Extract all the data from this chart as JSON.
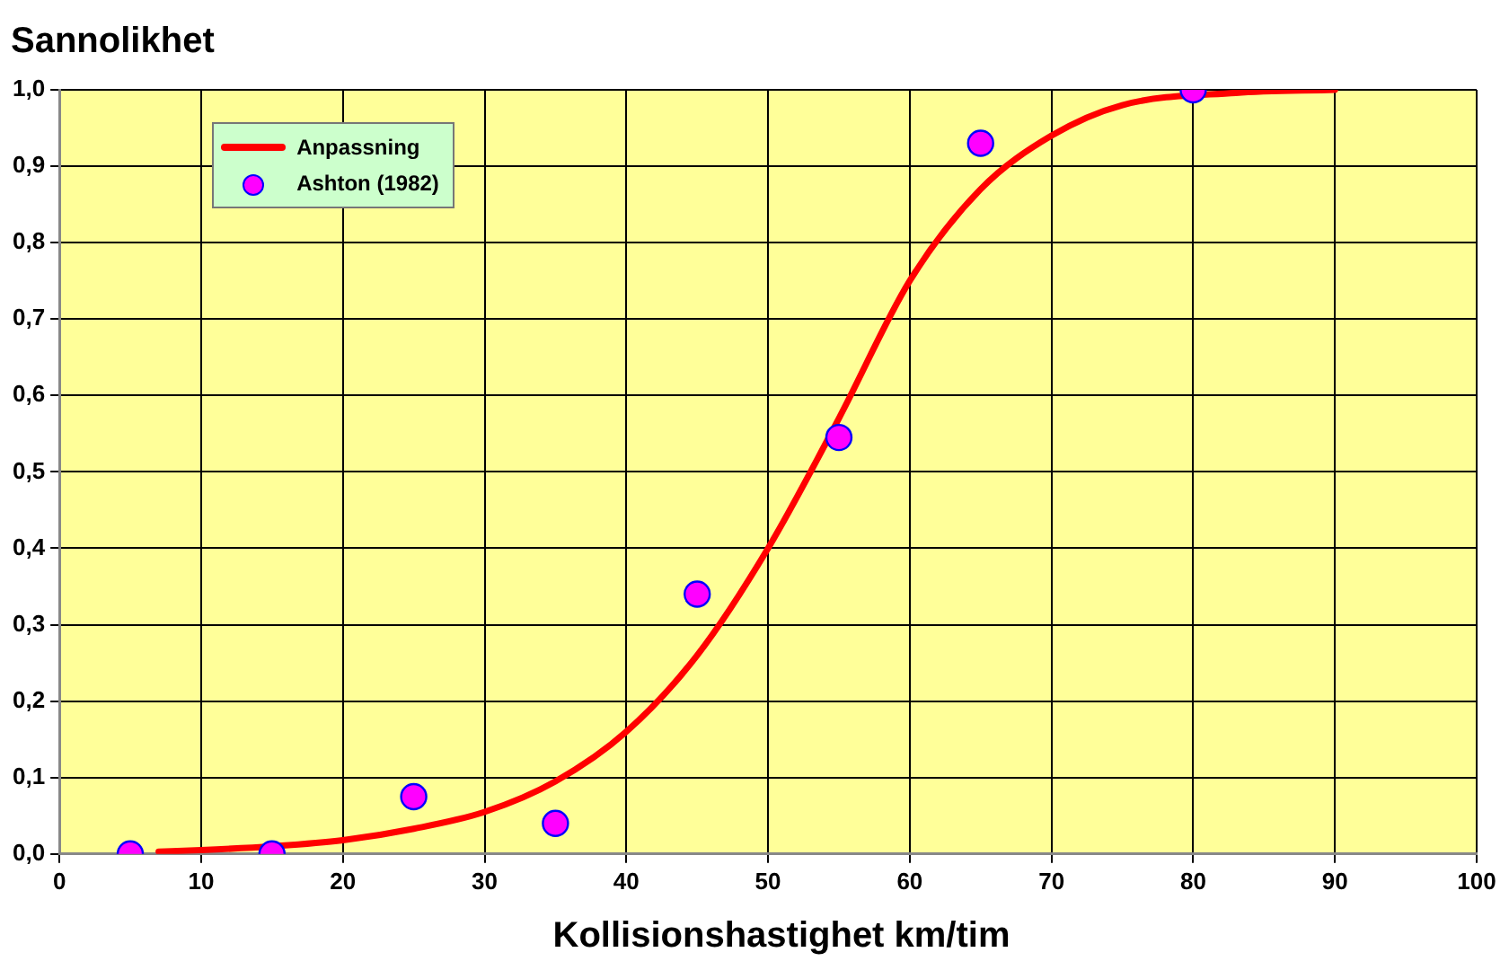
{
  "chart_data": {
    "type": "scatter",
    "xlabel": "Kollisionshastighet km/tim",
    "ylabel": "Sannolikhet",
    "xlim": [
      0,
      100
    ],
    "xticks": [
      0,
      10,
      20,
      30,
      40,
      50,
      60,
      70,
      80,
      90,
      100
    ],
    "ylim": [
      0,
      1
    ],
    "yticks": [
      {
        "value": 0,
        "label": "0,0"
      },
      {
        "value": 0.1,
        "label": "0,1"
      },
      {
        "value": 0.2,
        "label": "0,2"
      },
      {
        "value": 0.3,
        "label": "0,3"
      },
      {
        "value": 0.4,
        "label": "0,4"
      },
      {
        "value": 0.5,
        "label": "0,5"
      },
      {
        "value": 0.6,
        "label": "0,6"
      },
      {
        "value": 0.7,
        "label": "0,7"
      },
      {
        "value": 0.8,
        "label": "0,8"
      },
      {
        "value": 0.9,
        "label": "0,9"
      },
      {
        "value": 1,
        "label": "1,0"
      }
    ],
    "grid": true,
    "legend": "top left",
    "series": [
      {
        "name": "Anpassning",
        "type": "line",
        "color": "#ff0000",
        "marker": "none",
        "line_style": "solid",
        "x": [
          7,
          10,
          15,
          20,
          25,
          30,
          35,
          40,
          45,
          50,
          55,
          60,
          65,
          70,
          75,
          83,
          90
        ],
        "values": [
          0.003,
          0.005,
          0.01,
          0.018,
          0.033,
          0.055,
          0.095,
          0.16,
          0.26,
          0.4,
          0.57,
          0.75,
          0.87,
          0.94,
          0.98,
          0.996,
          1.0
        ]
      },
      {
        "name": "Ashton (1982)",
        "type": "scatter",
        "color": "#ff00ff",
        "marker": "circle",
        "x": [
          5,
          15,
          25,
          35,
          45,
          55,
          65,
          80
        ],
        "values": [
          0,
          0,
          0.075,
          0.04,
          0.34,
          0.545,
          0.93,
          1.0
        ]
      }
    ]
  }
}
